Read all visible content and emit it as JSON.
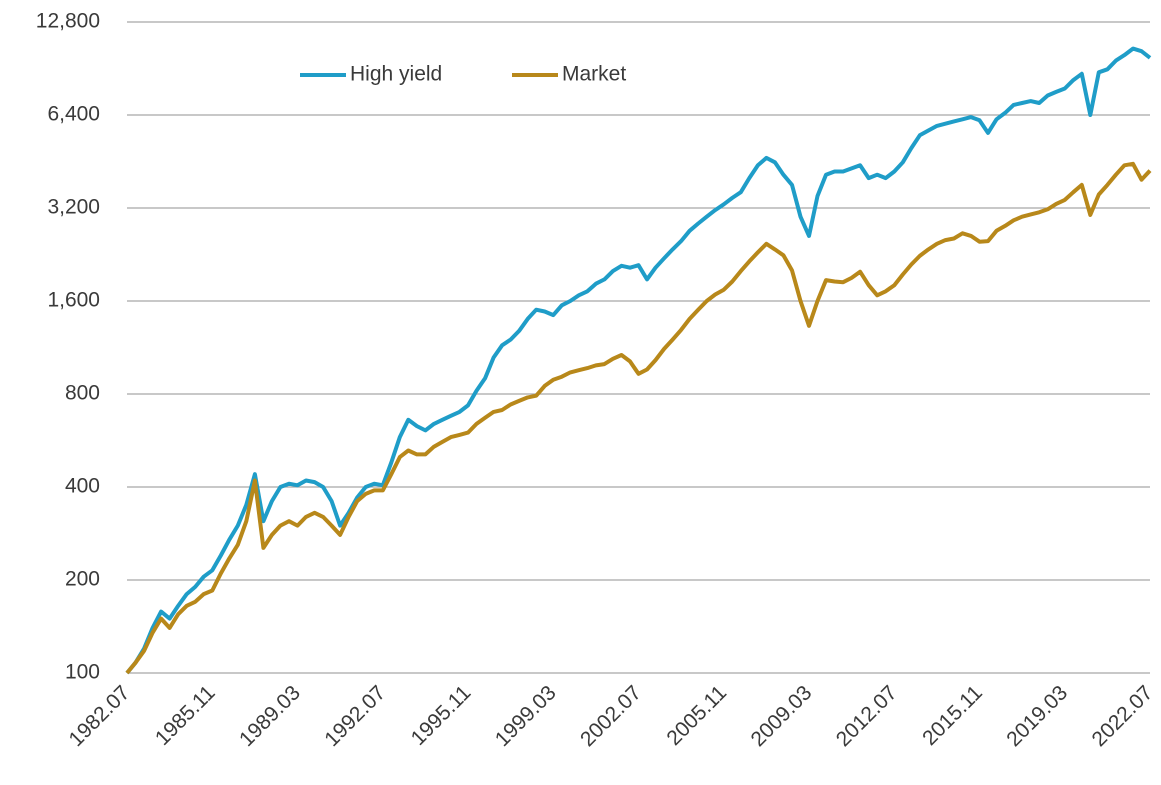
{
  "chart_data": {
    "type": "line",
    "log_scale": true,
    "grid": true,
    "legend": "top",
    "categories": [
      "1982.07",
      null,
      null,
      null,
      null,
      null,
      null,
      null,
      null,
      null,
      "1985.11",
      null,
      null,
      null,
      null,
      null,
      null,
      null,
      null,
      null,
      "1989.03",
      null,
      null,
      null,
      null,
      null,
      null,
      null,
      null,
      null,
      "1992.07",
      null,
      null,
      null,
      null,
      null,
      null,
      null,
      null,
      null,
      "1995.11",
      null,
      null,
      null,
      null,
      null,
      null,
      null,
      null,
      null,
      "1999.03",
      null,
      null,
      null,
      null,
      null,
      null,
      null,
      null,
      null,
      "2002.07",
      null,
      null,
      null,
      null,
      null,
      null,
      null,
      null,
      null,
      "2005.11",
      null,
      null,
      null,
      null,
      null,
      null,
      null,
      null,
      null,
      "2009.03",
      null,
      null,
      null,
      null,
      null,
      null,
      null,
      null,
      null,
      "2012.07",
      null,
      null,
      null,
      null,
      null,
      null,
      null,
      null,
      null,
      "2015.11",
      null,
      null,
      null,
      null,
      null,
      null,
      null,
      null,
      null,
      "2019.03",
      null,
      null,
      null,
      null,
      null,
      null,
      null,
      null,
      null,
      "2022.07"
    ],
    "series": [
      {
        "name": "High yield",
        "color": "#1f9dc8",
        "values": [
          100,
          108,
          120,
          140,
          158,
          150,
          165,
          180,
          190,
          205,
          215,
          240,
          270,
          300,
          350,
          440,
          310,
          360,
          400,
          410,
          405,
          420,
          415,
          400,
          360,
          300,
          330,
          370,
          400,
          410,
          405,
          480,
          580,
          660,
          630,
          610,
          640,
          660,
          680,
          700,
          735,
          820,
          900,
          1050,
          1150,
          1200,
          1280,
          1400,
          1500,
          1480,
          1440,
          1550,
          1600,
          1670,
          1720,
          1820,
          1880,
          2000,
          2080,
          2050,
          2090,
          1880,
          2050,
          2200,
          2350,
          2500,
          2700,
          2850,
          3000,
          3150,
          3290,
          3450,
          3600,
          4000,
          4400,
          4650,
          4500,
          4100,
          3800,
          3000,
          2600,
          3500,
          4100,
          4200,
          4200,
          4300,
          4400,
          4000,
          4100,
          4000,
          4200,
          4500,
          5000,
          5500,
          5700,
          5900,
          6000,
          6100,
          6200,
          6300,
          6150,
          5600,
          6200,
          6500,
          6900,
          7000,
          7100,
          7000,
          7400,
          7600,
          7800,
          8300,
          8700,
          6400,
          8800,
          9000,
          9600,
          10000,
          10500,
          10300,
          9800
        ]
      },
      {
        "name": "Market",
        "color": "#b8881a",
        "values": [
          100,
          108,
          118,
          135,
          150,
          140,
          155,
          165,
          170,
          180,
          185,
          210,
          235,
          260,
          310,
          420,
          254,
          280,
          300,
          310,
          300,
          320,
          330,
          320,
          300,
          280,
          320,
          360,
          380,
          390,
          390,
          440,
          500,
          525,
          510,
          510,
          540,
          560,
          580,
          590,
          600,
          640,
          670,
          700,
          710,
          740,
          760,
          780,
          790,
          850,
          890,
          910,
          940,
          955,
          970,
          990,
          1000,
          1040,
          1070,
          1020,
          930,
          960,
          1030,
          1120,
          1200,
          1290,
          1400,
          1500,
          1600,
          1680,
          1740,
          1850,
          2000,
          2150,
          2300,
          2450,
          2350,
          2250,
          2010,
          1600,
          1330,
          1600,
          1870,
          1850,
          1840,
          1900,
          1990,
          1800,
          1670,
          1720,
          1800,
          1950,
          2100,
          2240,
          2350,
          2450,
          2520,
          2550,
          2650,
          2600,
          2490,
          2500,
          2700,
          2800,
          2920,
          3000,
          3050,
          3100,
          3170,
          3300,
          3400,
          3600,
          3800,
          3040,
          3540,
          3800,
          4100,
          4400,
          4450,
          3950,
          4230
        ]
      }
    ],
    "ylim": [
      100,
      12800
    ],
    "yticks": [
      100,
      200,
      400,
      800,
      {
        "value": 1600,
        "label": "1,600"
      },
      {
        "value": 3200,
        "label": "3,200"
      },
      {
        "value": 6400,
        "label": "6,400"
      },
      {
        "value": 12800,
        "label": "12,800"
      }
    ]
  }
}
